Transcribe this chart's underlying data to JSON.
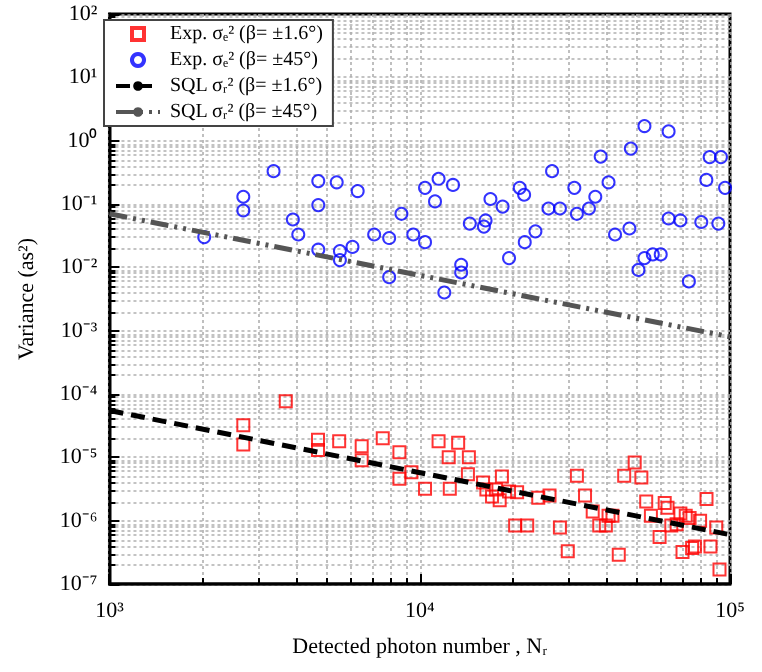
{
  "chart_data": {
    "type": "scatter",
    "xlabel": "Detected photon number , Nᵣ",
    "ylabel": "Variance (as²)",
    "log": "xy",
    "grid": true,
    "legend": "top left",
    "xlim": [
      1000,
      100000
    ],
    "ylim": [
      1e-07,
      100
    ],
    "xticks": [
      {
        "value": 1000,
        "label": "10³"
      },
      {
        "value": 10000,
        "label": "10⁴"
      },
      {
        "value": 100000,
        "label": "10⁵"
      }
    ],
    "yticks": [
      {
        "value": 1e-07,
        "label": "10⁻⁷"
      },
      {
        "value": 1e-06,
        "label": "10⁻⁶"
      },
      {
        "value": 1e-05,
        "label": "10⁻⁵"
      },
      {
        "value": 0.0001,
        "label": "10⁻⁴"
      },
      {
        "value": 0.001,
        "label": "10⁻³"
      },
      {
        "value": 0.01,
        "label": "10⁻²"
      },
      {
        "value": 0.1,
        "label": "10⁻¹"
      },
      {
        "value": 1,
        "label": "10⁰"
      },
      {
        "value": 10,
        "label": "10¹"
      },
      {
        "value": 100,
        "label": "10²"
      }
    ],
    "series": [
      {
        "name": "Exp. σₑ² (β= ±1.6°)",
        "marker": "square",
        "color": "#ff0000",
        "x": [
          2700,
          2700,
          3700,
          4700,
          4700,
          5500,
          6500,
          6500,
          7600,
          8600,
          8600,
          9400,
          10400,
          11500,
          12400,
          12500,
          13300,
          14300,
          14400,
          16000,
          16400,
          17100,
          17600,
          18100,
          18400,
          19400,
          20300,
          20600,
          22200,
          24100,
          26200,
          28300,
          30000,
          32100,
          34100,
          36100,
          37900,
          39800,
          40600,
          41800,
          43800,
          45600,
          49300,
          51800,
          53700,
          55600,
          59300,
          61600,
          62900,
          64700,
          67300,
          69200,
          70300,
          72000,
          74100,
          75500,
          77100,
          80100,
          84000,
          86500,
          90300,
          92500
        ],
        "values": [
          3.2e-05,
          1.6e-05,
          7.7e-05,
          1.9e-05,
          1.3e-05,
          1.8e-05,
          1.5e-05,
          9e-06,
          2e-05,
          1.2e-05,
          4.6e-06,
          5.8e-06,
          3.2e-06,
          1.8e-05,
          1e-05,
          3.2e-06,
          1.7e-05,
          5.4e-06,
          1e-05,
          4e-06,
          3.1e-06,
          2.4e-06,
          3.1e-06,
          2.1e-06,
          5e-06,
          2.9e-06,
          8.4e-07,
          2.8e-06,
          8.4e-07,
          2.3e-06,
          2.5e-06,
          7.8e-07,
          3.3e-07,
          5.1e-06,
          2.5e-06,
          1.4e-06,
          8.4e-07,
          8.4e-07,
          1.2e-06,
          1.2e-06,
          2.9e-07,
          5.1e-06,
          8.3e-06,
          4.8e-06,
          2e-06,
          1.2e-06,
          5.5e-07,
          1.9e-06,
          1.6e-06,
          8.4e-07,
          8.8e-07,
          1.3e-06,
          3.2e-07,
          1.2e-06,
          1.1e-06,
          3.7e-07,
          3.9e-07,
          1e-06,
          2.2e-06,
          3.9e-07,
          7.8e-07,
          1.7e-07
        ]
      },
      {
        "name": "Exp. σₑ² (β= ±45°)",
        "marker": "circle",
        "color": "#0000ff",
        "x": [
          2020,
          2700,
          2700,
          3380,
          3900,
          4060,
          4710,
          4710,
          4710,
          5400,
          5530,
          5530,
          6070,
          6310,
          7130,
          7970,
          7970,
          8730,
          9530,
          10400,
          10400,
          11200,
          11500,
          12000,
          12800,
          13600,
          13600,
          14500,
          16100,
          16300,
          16900,
          18500,
          19400,
          21000,
          21700,
          21800,
          23600,
          26000,
          26700,
          28300,
          31500,
          32100,
          35100,
          36800,
          38300,
          40600,
          42600,
          47400,
          47900,
          50700,
          53000,
          53000,
          56400,
          59800,
          63400,
          63400,
          69200,
          73700,
          80800,
          83900,
          86000,
          91700,
          93500,
          96400
        ],
        "values": [
          0.03,
          0.13,
          0.079,
          0.33,
          0.057,
          0.033,
          0.23,
          0.096,
          0.019,
          0.22,
          0.013,
          0.018,
          0.021,
          0.16,
          0.033,
          0.029,
          0.007,
          0.07,
          0.033,
          0.18,
          0.025,
          0.11,
          0.25,
          0.004,
          0.2,
          0.011,
          0.0083,
          0.049,
          0.044,
          0.055,
          0.12,
          0.091,
          0.014,
          0.18,
          0.14,
          0.025,
          0.037,
          0.085,
          0.33,
          0.085,
          0.18,
          0.07,
          0.085,
          0.13,
          0.56,
          0.22,
          0.033,
          0.041,
          0.75,
          0.0091,
          1.7,
          0.014,
          0.016,
          0.016,
          1.4,
          0.059,
          0.055,
          0.006,
          0.052,
          0.24,
          0.55,
          0.049,
          0.55,
          0.18
        ]
      },
      {
        "name": "SQL σᵣ² (β= ±1.6°)",
        "type": "line",
        "marker": "none",
        "line_style": "dashed",
        "color": "#000000",
        "x": [
          1000,
          100000
        ],
        "values": [
          5.5e-05,
          6e-07
        ]
      },
      {
        "name": "SQL σᵣ² (β= ±45°)",
        "type": "line",
        "marker": "none",
        "line_style": "dashdotdot",
        "color": "#555555",
        "x": [
          1000,
          100000
        ],
        "values": [
          0.07,
          0.0008
        ]
      }
    ]
  }
}
